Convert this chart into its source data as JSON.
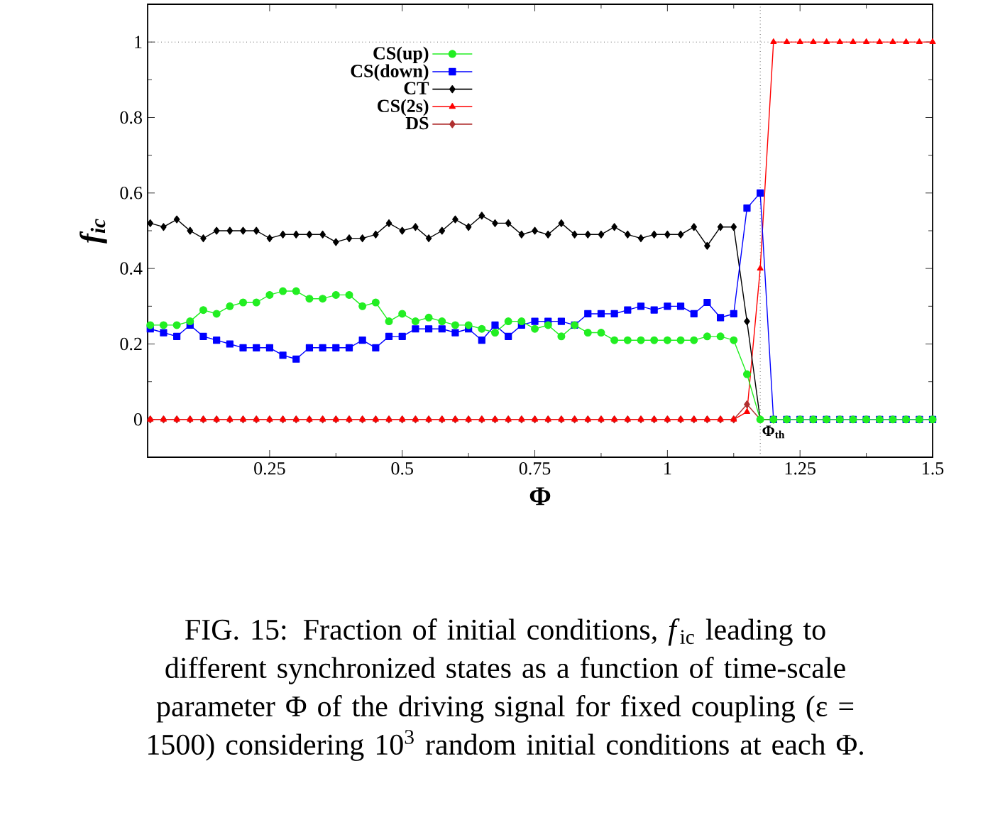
{
  "chart_data": {
    "type": "line",
    "xlabel": "Φ",
    "ylabel": "f$_{ic}$",
    "x": [
      0.025,
      0.05,
      0.075,
      0.1,
      0.125,
      0.15,
      0.175,
      0.2,
      0.225,
      0.25,
      0.275,
      0.3,
      0.325,
      0.35,
      0.375,
      0.4,
      0.425,
      0.45,
      0.475,
      0.5,
      0.525,
      0.55,
      0.575,
      0.6,
      0.625,
      0.65,
      0.675,
      0.7,
      0.725,
      0.75,
      0.775,
      0.8,
      0.825,
      0.85,
      0.875,
      0.9,
      0.925,
      0.95,
      0.975,
      1,
      1.025,
      1.05,
      1.075,
      1.1,
      1.125,
      1.15,
      1.175,
      1.2,
      1.225,
      1.25,
      1.275,
      1.3,
      1.325,
      1.35,
      1.375,
      1.4,
      1.425,
      1.45,
      1.475,
      1.5
    ],
    "series": [
      {
        "name": "CS(up)",
        "color": "#22ee22",
        "marker": "circle",
        "values": [
          0.25,
          0.25,
          0.25,
          0.26,
          0.29,
          0.28,
          0.3,
          0.31,
          0.31,
          0.33,
          0.34,
          0.34,
          0.32,
          0.32,
          0.33,
          0.33,
          0.3,
          0.31,
          0.26,
          0.28,
          0.26,
          0.27,
          0.26,
          0.25,
          0.25,
          0.24,
          0.23,
          0.26,
          0.26,
          0.24,
          0.25,
          0.22,
          0.25,
          0.23,
          0.23,
          0.21,
          0.21,
          0.21,
          0.21,
          0.21,
          0.21,
          0.21,
          0.22,
          0.22,
          0.21,
          0.12,
          0,
          0,
          0,
          0,
          0,
          0,
          0,
          0,
          0,
          0,
          0,
          0,
          0,
          0
        ]
      },
      {
        "name": "CS(down)",
        "color": "#0000ff",
        "marker": "square",
        "values": [
          0.24,
          0.23,
          0.22,
          0.25,
          0.22,
          0.21,
          0.2,
          0.19,
          0.19,
          0.19,
          0.17,
          0.16,
          0.19,
          0.19,
          0.19,
          0.19,
          0.21,
          0.19,
          0.22,
          0.22,
          0.24,
          0.24,
          0.24,
          0.23,
          0.24,
          0.21,
          0.25,
          0.22,
          0.25,
          0.26,
          0.26,
          0.26,
          0.25,
          0.28,
          0.28,
          0.28,
          0.29,
          0.3,
          0.29,
          0.3,
          0.3,
          0.28,
          0.31,
          0.27,
          0.28,
          0.56,
          0.6,
          0,
          0,
          0,
          0,
          0,
          0,
          0,
          0,
          0,
          0,
          0,
          0,
          0
        ]
      },
      {
        "name": "CT",
        "color": "#000000",
        "marker": "diamond",
        "values": [
          0.52,
          0.51,
          0.53,
          0.5,
          0.48,
          0.5,
          0.5,
          0.5,
          0.5,
          0.48,
          0.49,
          0.49,
          0.49,
          0.49,
          0.47,
          0.48,
          0.48,
          0.49,
          0.52,
          0.5,
          0.51,
          0.48,
          0.5,
          0.53,
          0.51,
          0.54,
          0.52,
          0.52,
          0.49,
          0.5,
          0.49,
          0.52,
          0.49,
          0.49,
          0.49,
          0.51,
          0.49,
          0.48,
          0.49,
          0.49,
          0.49,
          0.51,
          0.46,
          0.51,
          0.51,
          0.26,
          0,
          0,
          null,
          null,
          null,
          null,
          null,
          null,
          null,
          null,
          null,
          null,
          null,
          null
        ]
      },
      {
        "name": "CS(2s)",
        "color": "#ff0000",
        "marker": "triangle",
        "values": [
          0,
          0,
          0,
          0,
          0,
          0,
          0,
          0,
          0,
          0,
          0,
          0,
          0,
          0,
          0,
          0,
          0,
          0,
          0,
          0,
          0,
          0,
          0,
          0,
          0,
          0,
          0,
          0,
          0,
          0,
          0,
          0,
          0,
          0,
          0,
          0,
          0,
          0,
          0,
          0,
          0,
          0,
          0,
          0,
          0,
          0.02,
          0.4,
          1,
          1,
          1,
          1,
          1,
          1,
          1,
          1,
          1,
          1,
          1,
          1,
          1
        ]
      },
      {
        "name": "DS",
        "color": "#b03030",
        "marker": "diamond",
        "values": [
          0,
          0,
          0,
          0,
          0,
          0,
          0,
          0,
          0,
          0,
          0,
          0,
          0,
          0,
          0,
          0,
          0,
          0,
          0,
          0,
          0,
          0,
          0,
          0,
          0,
          0,
          0,
          0,
          0,
          0,
          0,
          0,
          0,
          0,
          0,
          0,
          0,
          0,
          0,
          0,
          0,
          0,
          0,
          0,
          0,
          0.04,
          0,
          0,
          null,
          null,
          null,
          null,
          null,
          null,
          null,
          null,
          null,
          null,
          null,
          null
        ]
      }
    ],
    "xlim": [
      0.02,
      1.5
    ],
    "ylim": [
      -0.1,
      1.1
    ],
    "xticks": [
      0.25,
      0.5,
      0.75,
      1,
      1.25,
      1.5
    ],
    "yticks": [
      0,
      0.2,
      0.4,
      0.6,
      0.8,
      1
    ],
    "ref_lines": [
      {
        "axis": "y",
        "value": 1,
        "line_style": "dotted",
        "color": "#000000"
      },
      {
        "axis": "x",
        "value": 1.175,
        "label": "Φ$_{th}$",
        "line_style": "dotted",
        "color": "#000000"
      }
    ],
    "legend": "top left",
    "annotations": [
      "FIG. 15: Fraction of initial conditions, *f*$_{ic}$ leading to different synchronized states as a function of time-scale parameter Φ of the driving signal for fixed coupling (ε = 1500) considering 10$^{3}$ random initial conditions at each Φ."
    ]
  }
}
